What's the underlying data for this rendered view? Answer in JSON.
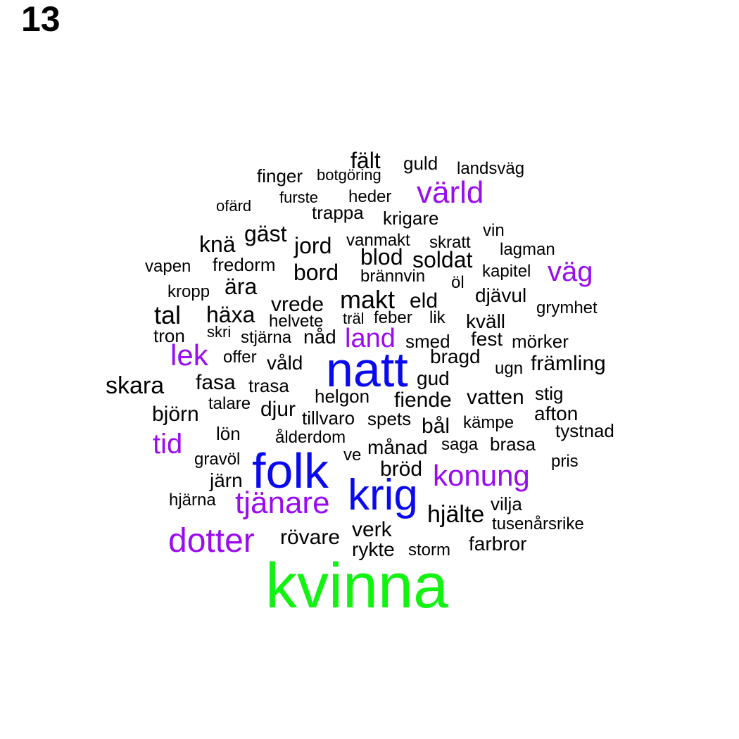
{
  "panel_number": "13",
  "colors": {
    "level_1": "#000000",
    "level_2": "#9a0cf0",
    "level_3": "#0a0af0",
    "level_4": "#12f312"
  },
  "words": [
    {
      "text": "fält",
      "level": 1
    },
    {
      "text": "guld",
      "level": 1
    },
    {
      "text": "landsväg",
      "level": 1
    },
    {
      "text": "finger",
      "level": 1
    },
    {
      "text": "botgöring",
      "level": 1
    },
    {
      "text": "värld",
      "level": 2
    },
    {
      "text": "ofärd",
      "level": 1
    },
    {
      "text": "furste",
      "level": 1
    },
    {
      "text": "heder",
      "level": 1
    },
    {
      "text": "trappa",
      "level": 1
    },
    {
      "text": "krigare",
      "level": 1
    },
    {
      "text": "vin",
      "level": 1
    },
    {
      "text": "knä",
      "level": 1
    },
    {
      "text": "gäst",
      "level": 1
    },
    {
      "text": "jord",
      "level": 1
    },
    {
      "text": "vanmakt",
      "level": 1
    },
    {
      "text": "skratt",
      "level": 1
    },
    {
      "text": "lagman",
      "level": 1
    },
    {
      "text": "vapen",
      "level": 1
    },
    {
      "text": "fredorm",
      "level": 1
    },
    {
      "text": "blod",
      "level": 1
    },
    {
      "text": "soldat",
      "level": 1
    },
    {
      "text": "kapitel",
      "level": 1
    },
    {
      "text": "väg",
      "level": 2
    },
    {
      "text": "bord",
      "level": 1
    },
    {
      "text": "brännvin",
      "level": 1
    },
    {
      "text": "öl",
      "level": 1
    },
    {
      "text": "ära",
      "level": 1
    },
    {
      "text": "kropp",
      "level": 1
    },
    {
      "text": "makt",
      "level": 1
    },
    {
      "text": "eld",
      "level": 1
    },
    {
      "text": "djävul",
      "level": 1
    },
    {
      "text": "vrede",
      "level": 1
    },
    {
      "text": "grymhet",
      "level": 1
    },
    {
      "text": "tal",
      "level": 1
    },
    {
      "text": "häxa",
      "level": 1
    },
    {
      "text": "träl",
      "level": 1
    },
    {
      "text": "feber",
      "level": 1
    },
    {
      "text": "lik",
      "level": 1
    },
    {
      "text": "helvete",
      "level": 1
    },
    {
      "text": "kväll",
      "level": 1
    },
    {
      "text": "tron",
      "level": 1
    },
    {
      "text": "skri",
      "level": 1
    },
    {
      "text": "stjärna",
      "level": 1
    },
    {
      "text": "nåd",
      "level": 1
    },
    {
      "text": "land",
      "level": 2
    },
    {
      "text": "smed",
      "level": 1
    },
    {
      "text": "fest",
      "level": 1
    },
    {
      "text": "mörker",
      "level": 1
    },
    {
      "text": "lek",
      "level": 2
    },
    {
      "text": "offer",
      "level": 1
    },
    {
      "text": "våld",
      "level": 1
    },
    {
      "text": "natt",
      "level": 3
    },
    {
      "text": "bragd",
      "level": 1
    },
    {
      "text": "ugn",
      "level": 1
    },
    {
      "text": "främling",
      "level": 1
    },
    {
      "text": "skara",
      "level": 1
    },
    {
      "text": "fasa",
      "level": 1
    },
    {
      "text": "trasa",
      "level": 1
    },
    {
      "text": "gud",
      "level": 1
    },
    {
      "text": "helgon",
      "level": 1
    },
    {
      "text": "stig",
      "level": 1
    },
    {
      "text": "talare",
      "level": 1
    },
    {
      "text": "fiende",
      "level": 1
    },
    {
      "text": "vatten",
      "level": 1
    },
    {
      "text": "djur",
      "level": 1
    },
    {
      "text": "björn",
      "level": 1
    },
    {
      "text": "tillvaro",
      "level": 1
    },
    {
      "text": "spets",
      "level": 1
    },
    {
      "text": "afton",
      "level": 1
    },
    {
      "text": "bål",
      "level": 1
    },
    {
      "text": "kämpe",
      "level": 1
    },
    {
      "text": "tystnad",
      "level": 1
    },
    {
      "text": "lön",
      "level": 1
    },
    {
      "text": "tid",
      "level": 2
    },
    {
      "text": "ålderdom",
      "level": 1
    },
    {
      "text": "saga",
      "level": 1
    },
    {
      "text": "brasa",
      "level": 1
    },
    {
      "text": "månad",
      "level": 1
    },
    {
      "text": "gravöl",
      "level": 1
    },
    {
      "text": "ve",
      "level": 1
    },
    {
      "text": "pris",
      "level": 1
    },
    {
      "text": "folk",
      "level": 3
    },
    {
      "text": "bröd",
      "level": 1
    },
    {
      "text": "järn",
      "level": 1
    },
    {
      "text": "konung",
      "level": 2
    },
    {
      "text": "krig",
      "level": 3
    },
    {
      "text": "hjärna",
      "level": 1
    },
    {
      "text": "vilja",
      "level": 1
    },
    {
      "text": "tjänare",
      "level": 2
    },
    {
      "text": "hjälte",
      "level": 1
    },
    {
      "text": "tusenårsrike",
      "level": 1
    },
    {
      "text": "verk",
      "level": 1
    },
    {
      "text": "dotter",
      "level": 2
    },
    {
      "text": "rövare",
      "level": 1
    },
    {
      "text": "farbror",
      "level": 1
    },
    {
      "text": "rykte",
      "level": 1
    },
    {
      "text": "storm",
      "level": 1
    },
    {
      "text": "kvinna",
      "level": 4
    }
  ]
}
